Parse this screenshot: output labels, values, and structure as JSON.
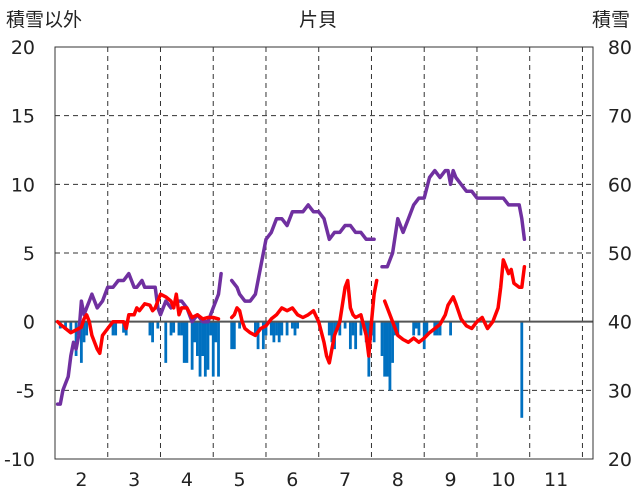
{
  "chart_data": {
    "type": "line",
    "title": "片貝",
    "ylabel_left": "積雪以外",
    "ylabel_right": "積雪",
    "x_ticks": [
      "2",
      "3",
      "4",
      "5",
      "6",
      "7",
      "8",
      "9",
      "10",
      "11"
    ],
    "xlim": [
      1.5,
      11.7
    ],
    "ylim_left": [
      -10,
      20
    ],
    "ylim_right": [
      20,
      80
    ],
    "y_ticks_left": [
      "20",
      "15",
      "10",
      "5",
      "0",
      "-5",
      "-10"
    ],
    "y_ticks_right": [
      "80",
      "70",
      "60",
      "50",
      "40",
      "30",
      "20"
    ],
    "grid": true,
    "series": [
      {
        "axis": "right",
        "color": "#7030a0",
        "segments": [
          [
            [
              1.55,
              28
            ],
            [
              1.6,
              28
            ],
            [
              1.65,
              30
            ],
            [
              1.7,
              31
            ],
            [
              1.75,
              32
            ],
            [
              1.8,
              35
            ],
            [
              1.85,
              37
            ],
            [
              1.9,
              36
            ],
            [
              1.95,
              38
            ],
            [
              2.0,
              43
            ],
            [
              2.05,
              41
            ],
            [
              2.1,
              42
            ],
            [
              2.15,
              43
            ],
            [
              2.2,
              44
            ],
            [
              2.3,
              42
            ],
            [
              2.4,
              43
            ],
            [
              2.5,
              45
            ],
            [
              2.6,
              45
            ],
            [
              2.7,
              46
            ],
            [
              2.8,
              46
            ],
            [
              2.9,
              47
            ],
            [
              2.95,
              46
            ],
            [
              3.0,
              45
            ],
            [
              3.05,
              45
            ],
            [
              3.15,
              46
            ],
            [
              3.2,
              45
            ],
            [
              3.3,
              45
            ],
            [
              3.4,
              45
            ],
            [
              3.45,
              42
            ],
            [
              3.5,
              41
            ],
            [
              3.6,
              43
            ],
            [
              3.7,
              42
            ],
            [
              3.8,
              43
            ],
            [
              3.9,
              43
            ],
            [
              4.0,
              42
            ],
            [
              4.1,
              40
            ],
            [
              4.2,
              41
            ],
            [
              4.3,
              40
            ],
            [
              4.4,
              40
            ],
            [
              4.5,
              42
            ],
            [
              4.6,
              44
            ],
            [
              4.65,
              47
            ]
          ],
          [
            [
              4.85,
              46
            ],
            [
              4.95,
              45
            ],
            [
              5.0,
              44
            ],
            [
              5.1,
              43
            ],
            [
              5.2,
              43
            ],
            [
              5.3,
              44
            ],
            [
              5.4,
              48
            ],
            [
              5.5,
              52
            ],
            [
              5.6,
              53
            ],
            [
              5.7,
              55
            ],
            [
              5.8,
              55
            ],
            [
              5.9,
              54
            ],
            [
              6.0,
              56
            ],
            [
              6.1,
              56
            ],
            [
              6.2,
              56
            ],
            [
              6.3,
              57
            ],
            [
              6.4,
              56
            ],
            [
              6.5,
              56
            ],
            [
              6.6,
              55
            ],
            [
              6.7,
              52
            ],
            [
              6.8,
              53
            ],
            [
              6.9,
              53
            ],
            [
              7.0,
              54
            ],
            [
              7.1,
              54
            ],
            [
              7.2,
              53
            ],
            [
              7.3,
              53
            ],
            [
              7.4,
              52
            ],
            [
              7.5,
              52
            ],
            [
              7.55,
              52
            ]
          ],
          [
            [
              7.7,
              48
            ],
            [
              7.8,
              48
            ],
            [
              7.9,
              50
            ],
            [
              8.0,
              55
            ],
            [
              8.1,
              53
            ],
            [
              8.2,
              55
            ],
            [
              8.3,
              57
            ],
            [
              8.4,
              58
            ],
            [
              8.5,
              58
            ],
            [
              8.6,
              61
            ],
            [
              8.7,
              62
            ],
            [
              8.8,
              61
            ],
            [
              8.9,
              62
            ],
            [
              8.95,
              62
            ],
            [
              9.0,
              60
            ],
            [
              9.05,
              62
            ],
            [
              9.1,
              61
            ],
            [
              9.2,
              60
            ],
            [
              9.3,
              59
            ],
            [
              9.4,
              59
            ],
            [
              9.5,
              58
            ],
            [
              9.6,
              58
            ],
            [
              9.7,
              58
            ],
            [
              9.8,
              58
            ],
            [
              10.0,
              58
            ],
            [
              10.1,
              57
            ],
            [
              10.2,
              57
            ],
            [
              10.3,
              57
            ],
            [
              10.35,
              55
            ],
            [
              10.4,
              52
            ]
          ]
        ]
      },
      {
        "axis": "left",
        "color": "#ff0000",
        "segments": [
          [
            [
              1.55,
              0
            ],
            [
              1.6,
              -0.2
            ],
            [
              1.7,
              -0.5
            ],
            [
              1.8,
              -0.8
            ],
            [
              1.9,
              -0.6
            ],
            [
              2.0,
              -0.4
            ],
            [
              2.05,
              0.2
            ],
            [
              2.1,
              0.5
            ],
            [
              2.15,
              0
            ],
            [
              2.2,
              -1
            ],
            [
              2.3,
              -2
            ],
            [
              2.35,
              -2.3
            ],
            [
              2.4,
              -1
            ],
            [
              2.5,
              -0.5
            ],
            [
              2.6,
              0
            ],
            [
              2.7,
              0
            ],
            [
              2.8,
              0
            ],
            [
              2.85,
              -0.5
            ],
            [
              2.9,
              0.5
            ],
            [
              3.0,
              0.5
            ],
            [
              3.05,
              1
            ],
            [
              3.1,
              0.8
            ],
            [
              3.2,
              1.3
            ],
            [
              3.3,
              1.2
            ],
            [
              3.35,
              0.8
            ],
            [
              3.4,
              1
            ],
            [
              3.5,
              2
            ],
            [
              3.6,
              1.8
            ],
            [
              3.7,
              1.5
            ],
            [
              3.75,
              1
            ],
            [
              3.8,
              2
            ],
            [
              3.85,
              0.5
            ],
            [
              3.9,
              1
            ],
            [
              4.0,
              1
            ],
            [
              4.1,
              0.3
            ],
            [
              4.2,
              0.5
            ],
            [
              4.3,
              0.2
            ],
            [
              4.4,
              0.3
            ],
            [
              4.5,
              0.3
            ],
            [
              4.6,
              0.2
            ]
          ],
          [
            [
              4.85,
              0.3
            ],
            [
              4.9,
              0.5
            ],
            [
              4.95,
              1
            ],
            [
              5.0,
              0.8
            ],
            [
              5.05,
              0
            ],
            [
              5.1,
              -0.5
            ],
            [
              5.2,
              -0.8
            ],
            [
              5.3,
              -1
            ],
            [
              5.4,
              -0.5
            ],
            [
              5.5,
              -0.3
            ],
            [
              5.6,
              0.2
            ],
            [
              5.7,
              0.5
            ],
            [
              5.8,
              1
            ],
            [
              5.9,
              0.8
            ],
            [
              6.0,
              1
            ],
            [
              6.1,
              0.5
            ],
            [
              6.2,
              0.3
            ],
            [
              6.3,
              0.5
            ],
            [
              6.4,
              0.8
            ],
            [
              6.5,
              0
            ],
            [
              6.6,
              -1.5
            ],
            [
              6.65,
              -2.5
            ],
            [
              6.7,
              -3
            ],
            [
              6.75,
              -2
            ],
            [
              6.8,
              -1
            ],
            [
              6.9,
              0
            ],
            [
              7.0,
              2.5
            ],
            [
              7.05,
              3
            ],
            [
              7.1,
              1
            ],
            [
              7.15,
              0.5
            ],
            [
              7.2,
              0.3
            ],
            [
              7.3,
              0.5
            ],
            [
              7.4,
              -1
            ],
            [
              7.45,
              -2.5
            ],
            [
              7.5,
              0
            ],
            [
              7.55,
              2
            ],
            [
              7.6,
              3
            ]
          ],
          [
            [
              7.75,
              1.5
            ],
            [
              7.8,
              1
            ],
            [
              7.9,
              0
            ],
            [
              8.0,
              -1
            ],
            [
              8.1,
              -1.3
            ],
            [
              8.2,
              -1.5
            ],
            [
              8.3,
              -1.2
            ],
            [
              8.4,
              -1.5
            ],
            [
              8.5,
              -1.2
            ],
            [
              8.6,
              -0.8
            ],
            [
              8.7,
              -0.5
            ],
            [
              8.8,
              -0.2
            ],
            [
              8.9,
              0.5
            ],
            [
              8.95,
              1.2
            ],
            [
              9.0,
              1.5
            ],
            [
              9.05,
              1.8
            ],
            [
              9.1,
              1.3
            ],
            [
              9.2,
              0.2
            ],
            [
              9.3,
              -0.3
            ],
            [
              9.4,
              -0.5
            ],
            [
              9.5,
              0
            ],
            [
              9.6,
              0.3
            ],
            [
              9.7,
              -0.5
            ],
            [
              9.8,
              0
            ],
            [
              9.9,
              1
            ],
            [
              9.95,
              2.5
            ],
            [
              10.0,
              4.5
            ],
            [
              10.05,
              4
            ],
            [
              10.1,
              3.5
            ],
            [
              10.15,
              3.8
            ],
            [
              10.2,
              2.8
            ],
            [
              10.3,
              2.5
            ],
            [
              10.35,
              2.5
            ],
            [
              10.4,
              4
            ]
          ]
        ]
      },
      {
        "type": "bar",
        "axis": "left",
        "color": "#0070c0",
        "x": [
          1.6,
          1.7,
          1.8,
          1.9,
          2.0,
          2.05,
          2.1,
          2.6,
          2.65,
          2.8,
          2.85,
          3.3,
          3.35,
          3.45,
          3.6,
          3.7,
          3.75,
          3.85,
          3.9,
          3.95,
          4.0,
          4.1,
          4.15,
          4.2,
          4.25,
          4.3,
          4.35,
          4.4,
          4.45,
          4.5,
          4.55,
          4.6,
          4.85,
          4.9,
          5.0,
          5.3,
          5.35,
          5.45,
          5.5,
          5.6,
          5.65,
          5.7,
          5.75,
          5.8,
          5.9,
          6.0,
          6.05,
          6.1,
          6.7,
          6.75,
          6.8,
          6.85,
          6.9,
          7.0,
          7.1,
          7.15,
          7.2,
          7.3,
          7.4,
          7.45,
          7.5,
          7.55,
          7.7,
          7.75,
          7.8,
          7.85,
          7.9,
          7.95,
          8.0,
          8.3,
          8.35,
          8.4,
          8.5,
          8.55,
          8.7,
          8.75,
          8.8,
          9.0,
          10.35
        ],
        "values": [
          -0.5,
          -0.6,
          -0.8,
          -2.5,
          -3,
          -1.5,
          -1,
          -1,
          -1,
          -0.8,
          -1,
          -1,
          -1.5,
          -0.5,
          -3,
          -1,
          -0.8,
          -1,
          -1,
          -3,
          -3,
          -3.5,
          -1.5,
          -2.5,
          -4,
          -2.5,
          -4,
          -3.5,
          -1,
          -4,
          -1.5,
          -4,
          -2,
          -2,
          -0.5,
          -1,
          -2,
          -2,
          -1,
          -1,
          -1.5,
          -1,
          -1.5,
          -1,
          -1,
          -0.5,
          -1,
          -0.5,
          -1,
          -1.5,
          -2,
          -0.5,
          -1,
          -0.5,
          -2,
          -1,
          -2,
          -1,
          -1.5,
          -4,
          -1,
          -1.5,
          -2.5,
          -4,
          -4,
          -5,
          -3,
          -1,
          -1,
          -1,
          -0.5,
          -1,
          -2,
          -1,
          -1,
          -1,
          -1,
          -1,
          -7
        ]
      }
    ]
  }
}
